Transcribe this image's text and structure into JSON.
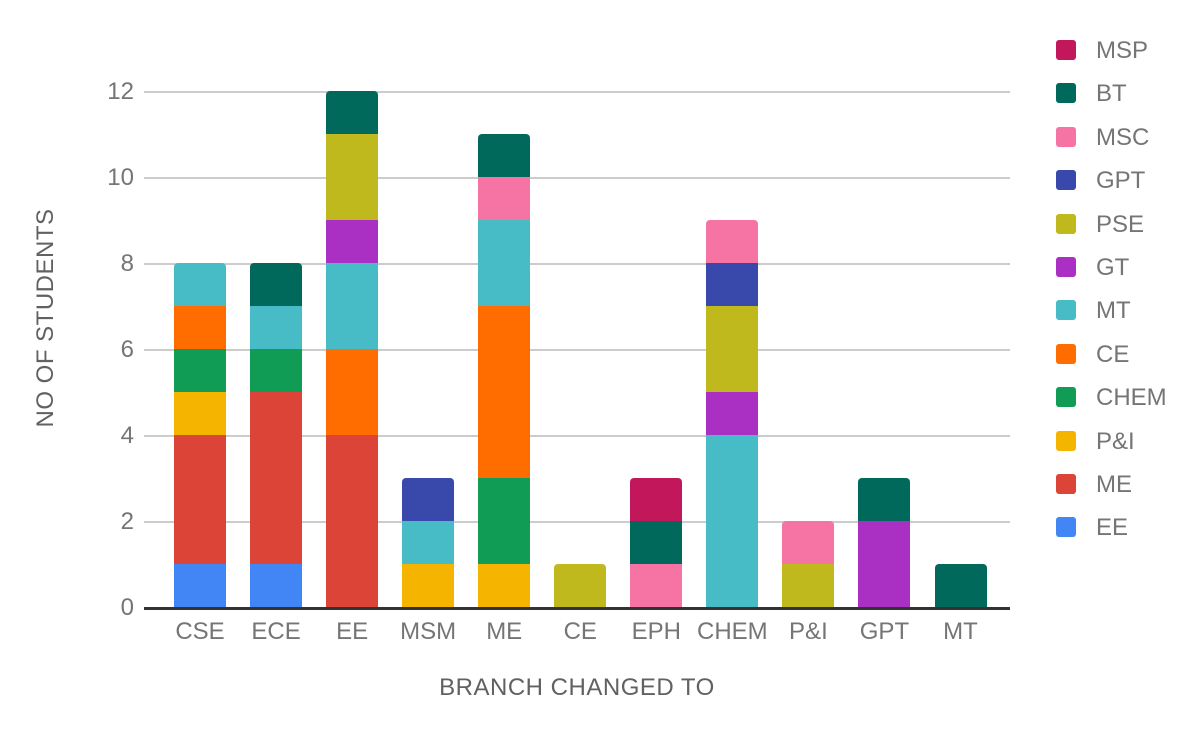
{
  "chart_data": {
    "type": "bar",
    "stacked": true,
    "title": "",
    "xlabel": "BRANCH CHANGED TO",
    "ylabel": "NO OF STUDENTS",
    "categories": [
      "CSE",
      "ECE",
      "EE",
      "MSM",
      "ME",
      "CE",
      "EPH",
      "CHEM",
      "P&I",
      "GPT",
      "MT"
    ],
    "y_ticks": [
      0,
      2,
      4,
      6,
      8,
      10,
      12
    ],
    "ylim": [
      0,
      12
    ],
    "grid": true,
    "legend_position": "right",
    "stack_order_bottom_to_top": "reverse of series list",
    "series": [
      {
        "name": "MSP",
        "color": "#C2185B",
        "values": [
          0,
          0,
          0,
          0,
          0,
          0,
          1,
          0,
          0,
          0,
          0
        ]
      },
      {
        "name": "BT",
        "color": "#00695C",
        "values": [
          0,
          1,
          1,
          0,
          1,
          0,
          1,
          0,
          0,
          1,
          1
        ]
      },
      {
        "name": "MSC",
        "color": "#F674A4",
        "values": [
          0,
          0,
          0,
          0,
          1,
          0,
          1,
          1,
          1,
          0,
          0
        ]
      },
      {
        "name": "GPT",
        "color": "#3949AB",
        "values": [
          0,
          0,
          0,
          1,
          0,
          0,
          0,
          1,
          0,
          0,
          0
        ]
      },
      {
        "name": "PSE",
        "color": "#C0B91E",
        "values": [
          0,
          0,
          2,
          0,
          0,
          1,
          0,
          2,
          1,
          0,
          0
        ]
      },
      {
        "name": "GT",
        "color": "#AA30C3",
        "values": [
          0,
          0,
          1,
          0,
          0,
          0,
          0,
          1,
          0,
          2,
          0
        ]
      },
      {
        "name": "MT",
        "color": "#47BCC7",
        "values": [
          1,
          1,
          2,
          1,
          2,
          0,
          0,
          4,
          0,
          0,
          0
        ]
      },
      {
        "name": "CE",
        "color": "#FF6D00",
        "values": [
          1,
          0,
          2,
          0,
          4,
          0,
          0,
          0,
          0,
          0,
          0
        ]
      },
      {
        "name": "CHEM",
        "color": "#109C55",
        "values": [
          1,
          1,
          0,
          0,
          2,
          0,
          0,
          0,
          0,
          0,
          0
        ]
      },
      {
        "name": "P&I",
        "color": "#F4B400",
        "values": [
          1,
          0,
          0,
          1,
          1,
          0,
          0,
          0,
          0,
          0,
          0
        ]
      },
      {
        "name": "ME",
        "color": "#DB4437",
        "values": [
          3,
          4,
          4,
          0,
          0,
          0,
          0,
          0,
          0,
          0,
          0
        ]
      },
      {
        "name": "EE",
        "color": "#4285F4",
        "values": [
          1,
          1,
          0,
          0,
          0,
          0,
          0,
          0,
          0,
          0,
          0
        ]
      }
    ],
    "category_totals": [
      8,
      8,
      12,
      3,
      11,
      1,
      3,
      9,
      2,
      3,
      1
    ]
  }
}
